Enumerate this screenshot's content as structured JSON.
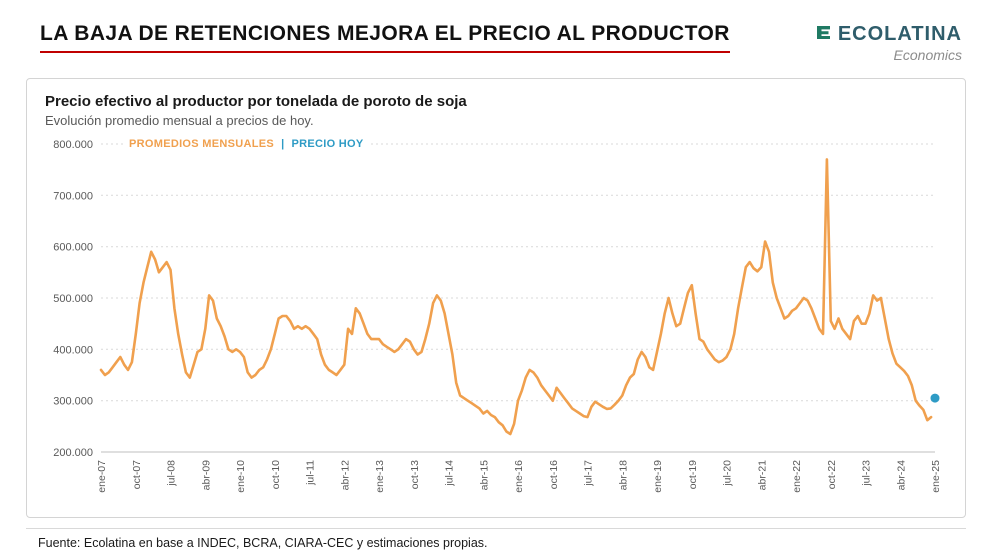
{
  "header": {
    "title": "LA BAJA DE RETENCIONES MEJORA EL PRECIO AL PRODUCTOR",
    "logo": {
      "name": "ECOLATINA",
      "tagline": "Economics"
    }
  },
  "chart": {
    "title": "Precio efectivo al productor por tonelada de poroto de soja",
    "subtitle": "Evolución promedio mensual a precios de hoy.",
    "legend": {
      "series1": "PROMEDIOS MENSUALES",
      "separator": "|",
      "series2": "PRECIO HOY"
    }
  },
  "footer": {
    "source": "Fuente: Ecolatina en base a INDEC, BCRA, CIARA-CEC y estimaciones propias."
  },
  "colors": {
    "accent_orange": "#F0A04E",
    "accent_blue": "#2E9BC5",
    "title_underline_red": "#C00000",
    "logo_teal": "#2F5D6B",
    "logo_icon_green": "#1F7A63",
    "grid_gray": "#D9D9D9",
    "axis_text_gray": "#595959"
  },
  "chart_data": {
    "type": "line",
    "title": "Precio efectivo al productor por tonelada de poroto de soja",
    "subtitle": "Evolución promedio mensual a precios de hoy.",
    "grid": true,
    "legend_position": "top-left",
    "frequency": "monthly",
    "x_start": "ene-07",
    "x_end": "ene-25",
    "x_count": 217,
    "x_tick_step": 9,
    "x_tick_labels": [
      "ene-07",
      "oct-07",
      "jul-08",
      "abr-09",
      "ene-10",
      "oct-10",
      "jul-11",
      "abr-12",
      "ene-13",
      "oct-13",
      "jul-14",
      "abr-15",
      "ene-16",
      "oct-16",
      "jul-17",
      "abr-18",
      "ene-19",
      "oct-19",
      "jul-20",
      "abr-21",
      "ene-22",
      "oct-22",
      "jul-23",
      "abr-24",
      "ene-25"
    ],
    "ylim": [
      200000,
      800000
    ],
    "y_ticks": [
      {
        "label": "800.000",
        "value": 800000
      },
      {
        "label": "700.000",
        "value": 700000
      },
      {
        "label": "600.000",
        "value": 600000
      },
      {
        "label": "500.000",
        "value": 500000
      },
      {
        "label": "400.000",
        "value": 400000
      },
      {
        "label": "300.000",
        "value": 300000
      },
      {
        "label": "200.000",
        "value": 200000
      }
    ],
    "series": [
      {
        "name": "PROMEDIOS MENSUALES",
        "color": "#F0A04E",
        "type": "line",
        "start": "ene-07",
        "end": "dic-24",
        "values": [
          360000,
          350000,
          355000,
          365000,
          375000,
          385000,
          370000,
          360000,
          375000,
          430000,
          490000,
          530000,
          560000,
          590000,
          575000,
          550000,
          560000,
          570000,
          555000,
          480000,
          430000,
          390000,
          355000,
          345000,
          370000,
          395000,
          400000,
          440000,
          505000,
          495000,
          460000,
          445000,
          425000,
          400000,
          395000,
          400000,
          395000,
          385000,
          355000,
          345000,
          350000,
          360000,
          365000,
          380000,
          400000,
          430000,
          460000,
          465000,
          465000,
          455000,
          440000,
          445000,
          440000,
          445000,
          440000,
          430000,
          420000,
          390000,
          370000,
          360000,
          355000,
          350000,
          360000,
          370000,
          440000,
          430000,
          480000,
          470000,
          450000,
          430000,
          420000,
          420000,
          420000,
          410000,
          405000,
          400000,
          395000,
          400000,
          410000,
          420000,
          415000,
          400000,
          390000,
          395000,
          420000,
          450000,
          490000,
          505000,
          495000,
          470000,
          430000,
          390000,
          335000,
          310000,
          305000,
          300000,
          295000,
          290000,
          285000,
          275000,
          280000,
          272000,
          268000,
          258000,
          252000,
          240000,
          235000,
          255000,
          300000,
          320000,
          345000,
          360000,
          355000,
          345000,
          330000,
          320000,
          310000,
          300000,
          325000,
          315000,
          305000,
          295000,
          285000,
          280000,
          275000,
          270000,
          268000,
          288000,
          298000,
          293000,
          288000,
          284000,
          285000,
          292000,
          300000,
          310000,
          330000,
          345000,
          352000,
          380000,
          395000,
          385000,
          365000,
          360000,
          395000,
          430000,
          470000,
          500000,
          470000,
          445000,
          450000,
          480000,
          510000,
          525000,
          470000,
          420000,
          415000,
          400000,
          390000,
          380000,
          375000,
          378000,
          385000,
          400000,
          430000,
          480000,
          520000,
          560000,
          570000,
          558000,
          552000,
          560000,
          610000,
          590000,
          530000,
          500000,
          480000,
          460000,
          465000,
          475000,
          480000,
          490000,
          500000,
          495000,
          480000,
          460000,
          440000,
          430000,
          770000,
          455000,
          440000,
          460000,
          440000,
          430000,
          420000,
          455000,
          465000,
          450000,
          450000,
          470000,
          505000,
          495000,
          500000,
          460000,
          420000,
          392000,
          372000,
          365000,
          358000,
          348000,
          330000,
          300000,
          290000,
          282000,
          262000,
          268000
        ]
      },
      {
        "name": "PRECIO HOY",
        "color": "#2E9BC5",
        "type": "point",
        "x": "ene-25",
        "x_index": 216,
        "value": 305000
      }
    ]
  }
}
